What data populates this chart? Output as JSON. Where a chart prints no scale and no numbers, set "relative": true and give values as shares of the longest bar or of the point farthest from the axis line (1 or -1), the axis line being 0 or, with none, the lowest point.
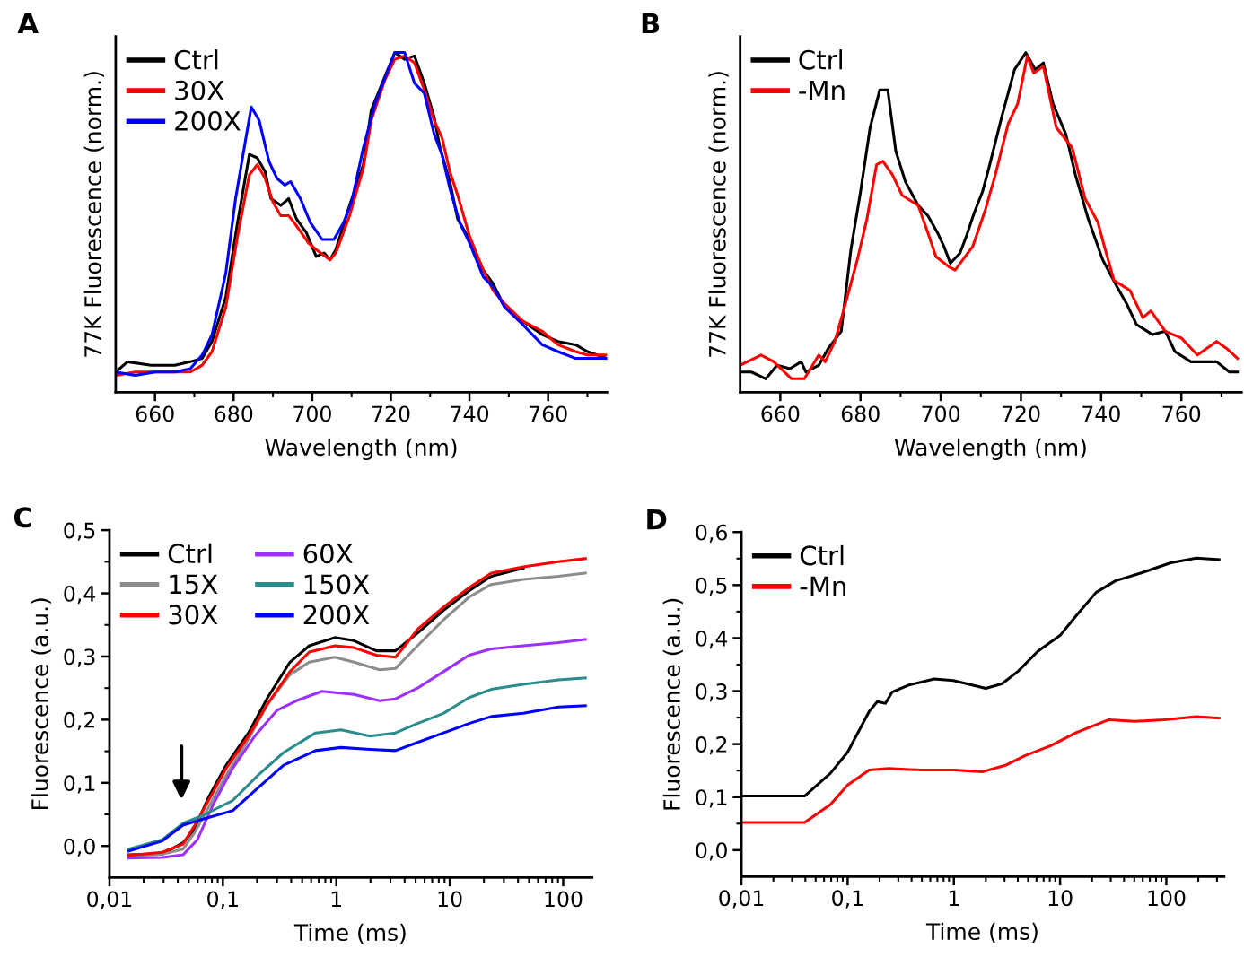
{
  "chart_data": [
    {
      "type": "line",
      "title": "A",
      "xlabel": "Wavelength (nm)",
      "ylabel": "77K Fluorescence (norm.)",
      "relative": true,
      "legend": "top left",
      "xlim": [
        650,
        775
      ],
      "xticks": [
        660,
        {
          "value": 670,
          "label": null
        },
        680,
        {
          "value": 690,
          "label": null
        },
        700,
        {
          "value": 710,
          "label": null
        },
        720,
        {
          "value": 730,
          "label": null
        },
        740,
        {
          "value": 750,
          "label": null
        },
        760,
        {
          "value": 770,
          "label": null
        }
      ],
      "series": [
        {
          "name": "Ctrl",
          "color": "#000000",
          "x": [
            650,
            653,
            659,
            665,
            669,
            672,
            674.5,
            678,
            681,
            684,
            686,
            688,
            689.5,
            692,
            694,
            696,
            698.5,
            701,
            703,
            704.5,
            706,
            709.5,
            713,
            715,
            718.5,
            721,
            723.5,
            726,
            728.5,
            731,
            732.5,
            735,
            737,
            740,
            743.5,
            746,
            749,
            753.5,
            758.5,
            762.5,
            767,
            770,
            775
          ],
          "values": [
            0.06,
            0.09,
            0.08,
            0.08,
            0.09,
            0.1,
            0.15,
            0.28,
            0.5,
            0.7,
            0.69,
            0.65,
            0.57,
            0.55,
            0.57,
            0.51,
            0.47,
            0.4,
            0.41,
            0.39,
            0.42,
            0.55,
            0.67,
            0.83,
            0.93,
            1.0,
            0.98,
            0.99,
            0.91,
            0.81,
            0.72,
            0.62,
            0.51,
            0.45,
            0.36,
            0.32,
            0.25,
            0.21,
            0.17,
            0.15,
            0.14,
            0.12,
            0.1
          ]
        },
        {
          "name": "30X",
          "color": "#ff0000",
          "x": [
            650,
            655,
            660,
            665,
            669,
            672,
            674.5,
            678,
            681,
            684,
            686,
            688,
            690,
            692,
            694,
            696,
            699,
            701,
            704.5,
            706,
            709.5,
            713,
            715,
            718.5,
            721,
            723.5,
            726,
            728.5,
            731,
            733,
            735,
            737,
            740,
            743.5,
            746,
            749,
            753.5,
            758.5,
            762.5,
            767,
            770,
            775
          ],
          "values": [
            0.05,
            0.06,
            0.06,
            0.06,
            0.06,
            0.08,
            0.12,
            0.25,
            0.46,
            0.64,
            0.67,
            0.63,
            0.56,
            0.52,
            0.52,
            0.49,
            0.44,
            0.42,
            0.39,
            0.41,
            0.52,
            0.66,
            0.8,
            0.92,
            0.98,
            0.99,
            0.97,
            0.89,
            0.8,
            0.75,
            0.65,
            0.58,
            0.46,
            0.36,
            0.3,
            0.26,
            0.21,
            0.18,
            0.14,
            0.12,
            0.11,
            0.11
          ]
        },
        {
          "name": "200X",
          "color": "#0000ff",
          "x": [
            650,
            655,
            660,
            665,
            669,
            672,
            674.5,
            678,
            680.5,
            683,
            684.5,
            686.5,
            689,
            691,
            693,
            694.5,
            697,
            699.5,
            702.5,
            705.5,
            708,
            710,
            713,
            716,
            719,
            721,
            723.5,
            726,
            728.5,
            731,
            733,
            735,
            737.5,
            740,
            743.5,
            746,
            749,
            753.5,
            758.5,
            762.5,
            767,
            770,
            775
          ],
          "values": [
            0.06,
            0.05,
            0.06,
            0.06,
            0.07,
            0.11,
            0.17,
            0.35,
            0.57,
            0.74,
            0.84,
            0.8,
            0.68,
            0.63,
            0.61,
            0.62,
            0.57,
            0.5,
            0.45,
            0.45,
            0.5,
            0.56,
            0.72,
            0.85,
            0.94,
            1.0,
            1.0,
            0.91,
            0.88,
            0.76,
            0.7,
            0.6,
            0.5,
            0.44,
            0.34,
            0.31,
            0.25,
            0.2,
            0.14,
            0.12,
            0.1,
            0.1,
            0.1
          ]
        }
      ]
    },
    {
      "type": "line",
      "title": "B",
      "xlabel": "Wavelength (nm)",
      "ylabel": "77K Fluorescence (norm.)",
      "relative": true,
      "legend": "top left",
      "xlim": [
        650,
        775
      ],
      "xticks": [
        660,
        {
          "value": 670,
          "label": null
        },
        680,
        {
          "value": 690,
          "label": null
        },
        700,
        {
          "value": 710,
          "label": null
        },
        720,
        {
          "value": 730,
          "label": null
        },
        740,
        {
          "value": 750,
          "label": null
        },
        760,
        {
          "value": 770,
          "label": null
        }
      ],
      "series": [
        {
          "name": "Ctrl",
          "color": "#000000",
          "x": [
            650,
            652.8,
            656.4,
            659.2,
            662.4,
            665.2,
            666.4,
            669.6,
            672,
            675.2,
            677.6,
            680,
            682.4,
            684.8,
            686.8,
            688.8,
            691.2,
            694.4,
            696.8,
            699.2,
            700.8,
            702.4,
            704.8,
            706.4,
            708.4,
            710.4,
            712,
            715.2,
            718.4,
            721.2,
            723.6,
            725.6,
            728,
            731.2,
            733.6,
            736.8,
            740.4,
            744,
            746.4,
            748.8,
            752.8,
            756,
            758.4,
            762.4,
            765.6,
            768.8,
            772,
            774
          ],
          "values": [
            0.06,
            0.06,
            0.04,
            0.08,
            0.07,
            0.09,
            0.06,
            0.08,
            0.13,
            0.18,
            0.42,
            0.59,
            0.78,
            0.89,
            0.89,
            0.71,
            0.62,
            0.55,
            0.52,
            0.47,
            0.43,
            0.38,
            0.41,
            0.46,
            0.53,
            0.59,
            0.66,
            0.81,
            0.95,
            1.0,
            0.95,
            0.97,
            0.85,
            0.76,
            0.64,
            0.51,
            0.39,
            0.31,
            0.26,
            0.2,
            0.17,
            0.18,
            0.12,
            0.09,
            0.09,
            0.09,
            0.06,
            0.06
          ]
        },
        {
          "name": "-Mn",
          "color": "#ff0000",
          "x": [
            650,
            655.2,
            658.4,
            662.8,
            666,
            669.6,
            671.2,
            673.6,
            676,
            679.2,
            681.6,
            684,
            685.6,
            688,
            690.4,
            694.4,
            696.8,
            698.8,
            702,
            703.6,
            708,
            711.2,
            713.6,
            716.8,
            719.2,
            721.6,
            723.2,
            725.6,
            728.8,
            732.8,
            736,
            739.2,
            740.8,
            743.2,
            747.2,
            750.4,
            752.4,
            756,
            760,
            764,
            768.8,
            771.2,
            774
          ],
          "values": [
            0.08,
            0.11,
            0.09,
            0.04,
            0.04,
            0.11,
            0.09,
            0.15,
            0.25,
            0.39,
            0.51,
            0.67,
            0.68,
            0.64,
            0.58,
            0.55,
            0.47,
            0.4,
            0.37,
            0.36,
            0.43,
            0.54,
            0.64,
            0.79,
            0.85,
            0.99,
            0.94,
            0.96,
            0.78,
            0.72,
            0.57,
            0.5,
            0.43,
            0.33,
            0.3,
            0.22,
            0.24,
            0.18,
            0.16,
            0.11,
            0.15,
            0.13,
            0.1
          ]
        }
      ]
    },
    {
      "type": "line",
      "title": "C",
      "xlabel": "Time (ms)",
      "ylabel": "Fluorescence (a.u.)",
      "log": "x",
      "legend": "top left",
      "xlim": [
        0.01,
        180
      ],
      "xticks": [
        {
          "value": 0.01,
          "label": "0,01"
        },
        {
          "value": 0.1,
          "label": "0,1"
        },
        1,
        10,
        100
      ],
      "ylim": [
        -0.05,
        0.5
      ],
      "yticks": [
        {
          "value": 0,
          "label": "0,0"
        },
        {
          "value": 0.05,
          "label": null
        },
        {
          "value": 0.1,
          "label": "0,1"
        },
        {
          "value": 0.15,
          "label": null
        },
        {
          "value": 0.2,
          "label": "0,2"
        },
        {
          "value": 0.25,
          "label": null
        },
        {
          "value": 0.3,
          "label": "0,3"
        },
        {
          "value": 0.35,
          "label": null
        },
        {
          "value": 0.4,
          "label": "0,4"
        },
        {
          "value": 0.45,
          "label": null
        },
        {
          "value": 0.5,
          "label": "0,5"
        }
      ],
      "series": [
        {
          "name": "Ctrl",
          "color": "#000000",
          "x": [
            0.0148,
            0.0292,
            0.0445,
            0.0557,
            0.0747,
            0.107,
            0.168,
            0.248,
            0.39,
            0.577,
            0.97,
            1.43,
            2.25,
            3.32,
            5.2,
            8.8,
            14.8,
            23.2,
            44.5
          ],
          "values": [
            -0.014,
            -0.013,
            0.005,
            0.026,
            0.077,
            0.128,
            0.179,
            0.235,
            0.291,
            0.317,
            0.33,
            0.325,
            0.309,
            0.309,
            0.337,
            0.373,
            0.404,
            0.427,
            0.44
          ]
        },
        {
          "name": "15X",
          "color": "#8c8c8c",
          "x": [
            0.0148,
            0.0292,
            0.0445,
            0.0557,
            0.0747,
            0.107,
            0.168,
            0.248,
            0.39,
            0.577,
            0.97,
            1.43,
            2.4,
            3.32,
            5.2,
            8.8,
            14.8,
            23.2,
            44.5,
            90.8,
            157
          ],
          "values": [
            -0.015,
            -0.013,
            -0.005,
            0.02,
            0.061,
            0.112,
            0.169,
            0.225,
            0.271,
            0.291,
            0.299,
            0.291,
            0.279,
            0.281,
            0.317,
            0.358,
            0.394,
            0.414,
            0.422,
            0.427,
            0.432
          ]
        },
        {
          "name": "30X",
          "color": "#ff0000",
          "x": [
            0.0148,
            0.0292,
            0.0445,
            0.0557,
            0.0747,
            0.107,
            0.168,
            0.248,
            0.39,
            0.577,
            0.97,
            1.43,
            2.25,
            3.32,
            4.03,
            5.2,
            8.8,
            14.8,
            23.2,
            44.5,
            90.8,
            157
          ],
          "values": [
            -0.015,
            -0.01,
            0.003,
            0.031,
            0.072,
            0.123,
            0.174,
            0.225,
            0.276,
            0.307,
            0.317,
            0.314,
            0.302,
            0.299,
            0.317,
            0.343,
            0.378,
            0.409,
            0.432,
            0.442,
            0.45,
            0.455
          ]
        },
        {
          "name": "60X",
          "color": "#9b30ff",
          "x": [
            0.0148,
            0.0292,
            0.0445,
            0.0596,
            0.0822,
            0.122,
            0.191,
            0.301,
            0.445,
            0.746,
            1.43,
            2.4,
            3.32,
            5.2,
            8.8,
            14.8,
            23.2,
            44.5,
            90.8,
            157
          ],
          "values": [
            -0.019,
            -0.018,
            -0.014,
            0.01,
            0.066,
            0.123,
            0.174,
            0.215,
            0.23,
            0.245,
            0.24,
            0.23,
            0.233,
            0.25,
            0.276,
            0.302,
            0.312,
            0.317,
            0.322,
            0.327
          ]
        },
        {
          "name": "150X",
          "color": "#2a8c8c",
          "x": [
            0.0148,
            0.0292,
            0.0445,
            0.0678,
            0.122,
            0.204,
            0.343,
            0.656,
            1.1,
            1.98,
            3.32,
            5.2,
            8.8,
            14.8,
            23.2,
            44.5,
            90.8,
            157
          ],
          "values": [
            -0.005,
            0.01,
            0.036,
            0.049,
            0.072,
            0.112,
            0.148,
            0.179,
            0.184,
            0.174,
            0.179,
            0.194,
            0.21,
            0.235,
            0.248,
            0.256,
            0.263,
            0.266
          ]
        },
        {
          "name": "200X",
          "color": "#0000ff",
          "x": [
            0.0148,
            0.0292,
            0.0445,
            0.0678,
            0.122,
            0.204,
            0.343,
            0.656,
            1.1,
            1.98,
            3.32,
            5.2,
            8.8,
            14.8,
            23.2,
            44.5,
            90.8,
            157
          ],
          "values": [
            -0.008,
            0.008,
            0.033,
            0.043,
            0.056,
            0.092,
            0.128,
            0.151,
            0.156,
            0.153,
            0.151,
            0.164,
            0.179,
            0.194,
            0.205,
            0.21,
            0.22,
            0.222
          ]
        }
      ]
    },
    {
      "type": "line",
      "title": "D",
      "xlabel": "Time (ms)",
      "ylabel": "Fluorescence (a.u.)",
      "log": "x",
      "legend": "top left",
      "xlim": [
        0.01,
        350
      ],
      "xticks": [
        {
          "value": 0.01,
          "label": "0,01"
        },
        {
          "value": 0.1,
          "label": "0,1"
        },
        1,
        10,
        100
      ],
      "ylim": [
        -0.05,
        0.6
      ],
      "yticks": [
        {
          "value": 0,
          "label": "0,0"
        },
        {
          "value": 0.05,
          "label": null
        },
        {
          "value": 0.1,
          "label": "0,1"
        },
        {
          "value": 0.15,
          "label": null
        },
        {
          "value": 0.2,
          "label": "0,2"
        },
        {
          "value": 0.25,
          "label": null
        },
        {
          "value": 0.3,
          "label": "0,3"
        },
        {
          "value": 0.35,
          "label": null
        },
        {
          "value": 0.4,
          "label": "0,4"
        },
        {
          "value": 0.45,
          "label": null
        },
        {
          "value": 0.5,
          "label": "0,5"
        },
        {
          "value": 0.55,
          "label": null
        },
        {
          "value": 0.6,
          "label": "0,6"
        }
      ],
      "series": [
        {
          "name": "Ctrl",
          "color": "#000000",
          "x": [
            0.01,
            0.0393,
            0.0689,
            0.1,
            0.16,
            0.19,
            0.227,
            0.262,
            0.371,
            0.652,
            0.99,
            1.51,
            2.0,
            2.85,
            4.05,
            6.16,
            10.1,
            14.3,
            21.8,
            33.2,
            58.2,
            110,
            192,
            314
          ],
          "values": [
            0.102,
            0.102,
            0.145,
            0.185,
            0.262,
            0.28,
            0.277,
            0.298,
            0.311,
            0.323,
            0.32,
            0.311,
            0.305,
            0.314,
            0.338,
            0.375,
            0.406,
            0.443,
            0.486,
            0.508,
            0.523,
            0.542,
            0.551,
            0.548
          ]
        },
        {
          "name": "-Mn",
          "color": "#ff0000",
          "x": [
            0.01,
            0.0393,
            0.0689,
            0.1,
            0.16,
            0.244,
            0.492,
            0.99,
            1.87,
            3.05,
            4.65,
            8.17,
            14.3,
            28.8,
            50.6,
            95.2,
            192,
            314
          ],
          "values": [
            0.052,
            0.052,
            0.086,
            0.123,
            0.151,
            0.154,
            0.151,
            0.151,
            0.148,
            0.16,
            0.178,
            0.197,
            0.222,
            0.246,
            0.243,
            0.246,
            0.252,
            0.249
          ]
        }
      ]
    }
  ]
}
